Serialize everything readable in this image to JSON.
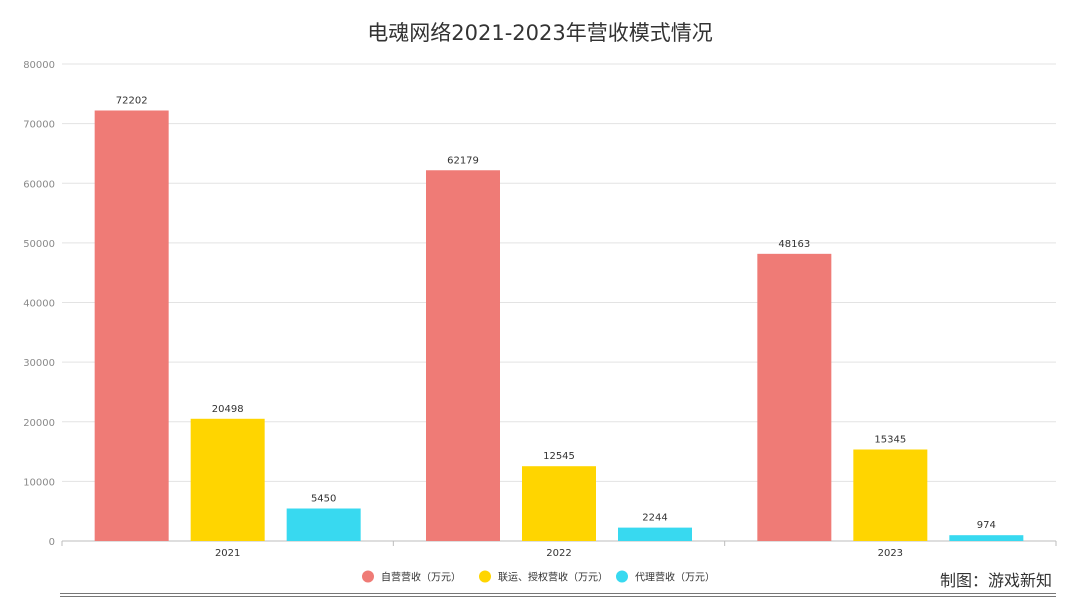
{
  "chart_data": {
    "type": "bar",
    "title": "电魂网络2021-2023年营收模式情况",
    "categories": [
      "2021",
      "2022",
      "2023"
    ],
    "series": [
      {
        "name": "自营营收（万元）",
        "color": "#EF7B76",
        "values": [
          72202,
          62179,
          48163
        ]
      },
      {
        "name": "联运、授权营收（万元）",
        "color": "#FFD500",
        "values": [
          20498,
          12545,
          15345
        ]
      },
      {
        "name": "代理营收（万元）",
        "color": "#38D9F0",
        "values": [
          5450,
          2244,
          974
        ]
      }
    ],
    "ylim": [
      0,
      80000
    ],
    "yticks": [
      "0",
      "10000",
      "20000",
      "30000",
      "40000",
      "50000",
      "60000",
      "70000",
      "80000"
    ],
    "xlabel": "",
    "ylabel": "",
    "grid": true,
    "legend_position": "bottom-center"
  },
  "credit": "制图：游戏新知"
}
